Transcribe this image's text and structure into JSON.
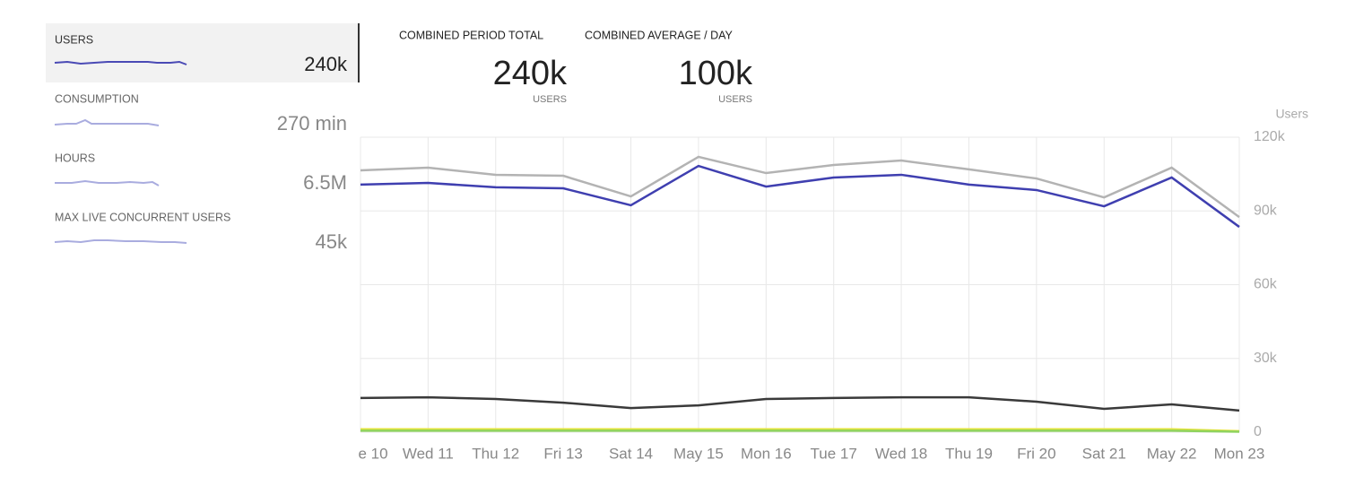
{
  "sidebar": {
    "metrics": [
      {
        "label": "USERS",
        "value": "240k"
      },
      {
        "label": "CONSUMPTION",
        "value": "270 min"
      },
      {
        "label": "HOURS",
        "value": "6.5M"
      },
      {
        "label": "MAX LIVE CONCURRENT USERS",
        "value": "45k"
      }
    ]
  },
  "summary": [
    {
      "label": "COMBINED PERIOD TOTAL",
      "value": "240k",
      "unit": "USERS"
    },
    {
      "label": "COMBINED AVERAGE / DAY",
      "value": "100k",
      "unit": "USERS"
    }
  ],
  "chart_data": {
    "type": "line",
    "y_label": "Users",
    "categories": [
      "e 10",
      "Wed 11",
      "Thu 12",
      "Fri 13",
      "Sat 14",
      "May 15",
      "Mon 16",
      "Tue 17",
      "Wed 18",
      "Thu 19",
      "Fri 20",
      "Sat 21",
      "May 22",
      "Mon 23"
    ],
    "series": [
      {
        "color": "#b3b3b3",
        "values": [
          106500,
          107600,
          104700,
          104300,
          95900,
          112000,
          105400,
          108700,
          110500,
          106900,
          103200,
          95500,
          107600,
          87500
        ]
      },
      {
        "color": "#3f3fb0",
        "values": [
          100700,
          101400,
          99600,
          99200,
          92300,
          108300,
          99900,
          103600,
          104700,
          100700,
          98500,
          91900,
          103600,
          83500
        ]
      },
      {
        "color": "#3a3a3a",
        "values": [
          13900,
          14200,
          13500,
          12000,
          9800,
          10900,
          13500,
          13900,
          14200,
          14200,
          12400,
          9500,
          11300,
          8800
        ]
      },
      {
        "color": "#e3e43a",
        "values": [
          1200,
          1200,
          1200,
          1200,
          1200,
          1200,
          1200,
          1200,
          1200,
          1200,
          1200,
          1200,
          1200,
          400
        ]
      },
      {
        "color": "#8fd35f",
        "values": [
          600,
          600,
          600,
          600,
          600,
          600,
          600,
          600,
          600,
          600,
          600,
          600,
          600,
          200
        ]
      }
    ],
    "ylim": [
      0,
      120000
    ],
    "yticks": [
      0,
      {
        "value": 30000,
        "label": "30k"
      },
      {
        "value": 60000,
        "label": "60k"
      },
      {
        "value": 90000,
        "label": "90k"
      },
      {
        "value": 120000,
        "label": "120k"
      }
    ],
    "grid": true
  }
}
